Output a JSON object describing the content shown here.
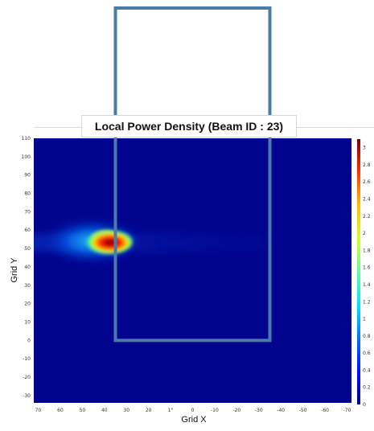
{
  "chart_data": {
    "type": "heatmap",
    "title": "Local Power Density (Beam ID : 23)",
    "xlabel": "Grid X",
    "ylabel": "Grid Y",
    "x_ticks": [
      "70",
      "60",
      "50",
      "40",
      "30",
      "20",
      "10",
      "0",
      "-10",
      "-20",
      "-30",
      "-40",
      "-50",
      "-60",
      "-70"
    ],
    "x_tick_labels_shown": [
      "70",
      "60",
      "50",
      "40",
      "30",
      "20",
      "1°",
      "0",
      "-10",
      "-20",
      "-30",
      "-40",
      "-50",
      "-60",
      "-70"
    ],
    "xlim": [
      72,
      -72
    ],
    "y_ticks": [
      110,
      100,
      90,
      80,
      70,
      60,
      50,
      40,
      30,
      20,
      10,
      0,
      -10,
      -20,
      -30
    ],
    "ylim": [
      -34,
      110
    ],
    "colorbar": {
      "ticks": [
        "3",
        "2.8",
        "2.6",
        "2.4",
        "2.2",
        "2",
        "1.8",
        "1.6",
        "1.4",
        "1.2",
        "1",
        "0.8",
        "0.6",
        "0.4",
        "0.2",
        "0"
      ],
      "range": [
        0,
        3.1
      ]
    },
    "hotspot": {
      "x": 42,
      "y": 54,
      "peak": 3.1,
      "spread_x": 12,
      "spread_y": 6
    },
    "overlay_rect": {
      "x": [
        35,
        -35
      ],
      "y": [
        0,
        110
      ]
    },
    "colors": {
      "background": "#01058e",
      "overlay": "#4a7bab"
    }
  }
}
